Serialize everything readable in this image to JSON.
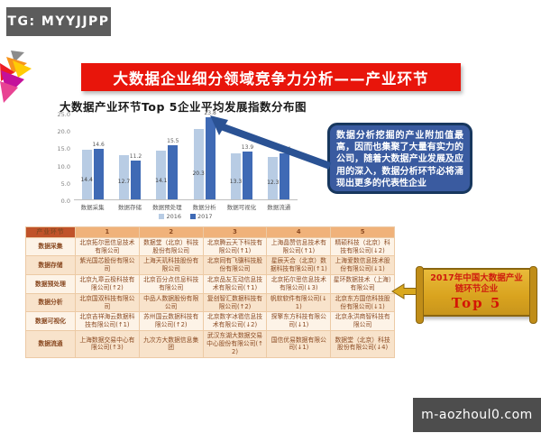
{
  "badges": {
    "telegram": "TG: MYYJJPP",
    "watermark": "m-aozhoul0.com"
  },
  "banner": {
    "title": "大数据企业细分领域竞争力分析——产业环节"
  },
  "chart_data": {
    "type": "bar",
    "title": "大数据产业环节Top 5企业平均发展指数分布图",
    "categories": [
      "数据采集",
      "数据存储",
      "数据预处理",
      "数据分析",
      "数据可视化",
      "数据流通"
    ],
    "series": [
      {
        "name": "2016",
        "color": "#b8cce4",
        "values": [
          14.4,
          12.7,
          14.1,
          20.3,
          13.3,
          12.3
        ]
      },
      {
        "name": "2017",
        "color": "#3f6ab5",
        "values": [
          14.6,
          11.2,
          15.5,
          23.8,
          13.9,
          13.4
        ]
      }
    ],
    "xlabel": "",
    "ylabel": "",
    "ylim": [
      0,
      25
    ],
    "yticks": [
      25.0,
      20.0,
      15.0,
      10.0,
      5.0,
      0.0
    ],
    "grid": false,
    "legend_position": "bottom"
  },
  "callout": {
    "text": "数据分析挖掘的产业附加值最高，因而也集聚了大量有实力的公司，随着大数据产业发展及应用的深入，数据分析环节必将涌现出更多的代表性企业"
  },
  "table": {
    "header": [
      "产业环节",
      "1",
      "2",
      "3",
      "4",
      "5"
    ],
    "rows": [
      [
        "数据采集",
        "北京拓尔思信息技术有限公司",
        "数据堂（北京）科技股份有限公司",
        "北京腾云天下科技有限公司(↑1)",
        "上海晶赞信息技术有限公司(↑1)",
        "精硕科技（北京）科技有限公司(↓2)"
      ],
      [
        "数据存储",
        "紫光国芯股份有限公司",
        "上海天玑科技股份有限公司",
        "北京同有飞骥科技股份有限公司",
        "星辰天合（北京）数据科技有限公司(↑1)",
        "上海爱数信息技术股份有限公司(↓1)"
      ],
      [
        "数据预处理",
        "北京九章云极科技有限公司(↑2)",
        "北京百分点信息科技有限公司",
        "北京品友互动信息技术有限公司(↑1)",
        "北京拓尔思信息技术有限公司(↓3)",
        "星环数据技术（上海）有限公司"
      ],
      [
        "数据分析",
        "北京国双科技有限公司",
        "中品人数据股份有限公司",
        "复创智汇数据科技有限公司(↑2)",
        "帆软软件有限公司(↓1)",
        "北京东方国信科技股份有限公司(↓1)"
      ],
      [
        "数据可视化",
        "北京吉祥海云数据科技有限公司(↑1)",
        "苏州国云数据科技有限公司(↑2)",
        "北京数字冰雹信息技术有限公司(↓2)",
        "探擎东方科技有限公司(↓1)",
        "北京永洪商智科技有限公司"
      ],
      [
        "数据流通",
        "上海数据交易中心有限公司(↑3)",
        "九次方大数据信息集团",
        "武汉东湖大数据交易中心股份有限公司(↑2)",
        "国信优易数据有限公司(↓1)",
        "数据堂（北京）科技股份有限公司(↓4)"
      ]
    ],
    "highlight_cell": {
      "row": 5,
      "col": 3
    }
  },
  "scroll_box": {
    "line1": "2017年中国大数据产业",
    "line2": "链环节企业",
    "top_label": "Top 5"
  },
  "colors": {
    "banner_red": "#e8150b",
    "callout_blue": "#3a5ba0",
    "arrow_blue": "#2a5294",
    "table_header_orange": "#c0532a",
    "scroll_gold": "#d9a31e",
    "highlight_red": "#b00000"
  }
}
